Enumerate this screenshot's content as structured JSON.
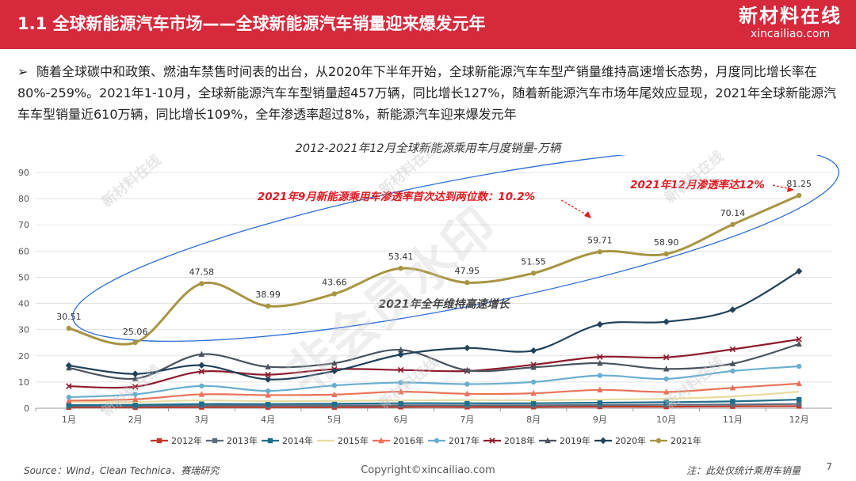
{
  "header": {
    "title": "1.1 全球新能源汽车市场——全球新能源汽车销量迎来爆发元年",
    "logo_main": "新材料在线",
    "logo_sub": "xincailiao.com"
  },
  "bullet": {
    "marker": "➢",
    "text": "随着全球碳中和政策、燃油车禁售时间表的出台，从2020年下半年开始，全球新能源汽车车型产销量维持高速增长态势，月度同比增长率在80%-259%。2021年1-10月，全球新能源汽车车型销量超457万辆，同比增长127%，随着新能源汽车市场年尾效应显现，2021年全球新能源汽车车型销量近610万辆，同比增长109%，全年渗透率超过8%，新能源汽车迎来爆发元年"
  },
  "watermarks": {
    "big": "非会员水印",
    "small": "新材料在线",
    "small_sub": "xincailiao.com"
  },
  "chart_data": {
    "type": "line",
    "title": "2012-2021年12月全球新能源乘用车月度销量-万辆",
    "categories": [
      "1月",
      "2月",
      "3月",
      "4月",
      "5月",
      "6月",
      "7月",
      "8月",
      "9月",
      "10月",
      "11月",
      "12月"
    ],
    "ylim": [
      0,
      90
    ],
    "yticks": [
      0,
      10,
      20,
      30,
      40,
      50,
      60,
      70,
      80,
      90
    ],
    "grid": true,
    "legend_position": "bottom",
    "series": [
      {
        "name": "2012年",
        "color": "#c0392b",
        "marker": "square",
        "values": [
          0.3,
          0.3,
          0.4,
          0.4,
          0.4,
          0.5,
          0.5,
          0.5,
          0.6,
          0.6,
          0.7,
          0.8
        ]
      },
      {
        "name": "2013年",
        "color": "#5d6d7e",
        "marker": "square",
        "values": [
          0.8,
          0.8,
          1.0,
          1.0,
          1.0,
          1.1,
          1.1,
          1.1,
          1.2,
          1.3,
          1.4,
          1.6
        ]
      },
      {
        "name": "2014年",
        "color": "#1f6f8b",
        "marker": "square",
        "values": [
          1.2,
          1.3,
          1.6,
          1.6,
          1.7,
          1.9,
          1.9,
          1.9,
          2.1,
          2.3,
          2.6,
          3.3
        ]
      },
      {
        "name": "2015年",
        "color": "#e8dca0",
        "marker": "none",
        "values": [
          2.5,
          2.4,
          3.0,
          2.7,
          2.8,
          3.0,
          3.1,
          3.0,
          3.3,
          3.6,
          4.5,
          6.3
        ]
      },
      {
        "name": "2016年",
        "color": "#e8735a",
        "marker": "triangle",
        "values": [
          2.9,
          3.4,
          5.3,
          5.0,
          5.2,
          6.3,
          5.5,
          5.7,
          7.0,
          6.2,
          7.8,
          9.4
        ]
      },
      {
        "name": "2017年",
        "color": "#6aaecf",
        "marker": "circle",
        "values": [
          4.2,
          5.3,
          8.5,
          6.6,
          8.7,
          9.8,
          9.2,
          10.0,
          12.5,
          11.2,
          14.2,
          16.0
        ]
      },
      {
        "name": "2018年",
        "color": "#8e1b2e",
        "marker": "cross",
        "values": [
          8.4,
          8.2,
          14.0,
          12.8,
          14.9,
          14.6,
          14.2,
          16.6,
          19.6,
          19.4,
          22.5,
          26.3
        ]
      },
      {
        "name": "2019年",
        "color": "#4a535e",
        "marker": "triangle",
        "values": [
          15.4,
          11.3,
          20.6,
          15.8,
          17.2,
          22.3,
          14.5,
          15.6,
          17.2,
          15.0,
          17.0,
          24.5
        ]
      },
      {
        "name": "2020年",
        "color": "#21425a",
        "marker": "diamond",
        "values": [
          16.3,
          13.1,
          16.4,
          11.0,
          14.2,
          20.5,
          23.0,
          22.0,
          32.0,
          33.0,
          37.6,
          52.3
        ]
      },
      {
        "name": "2021年",
        "color": "#a89544",
        "marker": "circle",
        "values": [
          30.51,
          25.06,
          47.58,
          38.99,
          43.66,
          53.41,
          47.95,
          51.55,
          59.71,
          58.9,
          70.14,
          81.25
        ]
      }
    ],
    "data_labels": [
      "30.51",
      "25.06",
      "47.58",
      "38.99",
      "43.66",
      "53.41",
      "47.95",
      "51.55",
      "59.71",
      "58.90",
      "70.14",
      "81.25"
    ],
    "annotations": {
      "sep": "2021年9月新能源乘用车渗透率首次达到两位数：10.2%",
      "dec": "2021年12月渗透率达12%",
      "growth": "2021年全年维持高速增长"
    }
  },
  "footer": {
    "source": "Source：Wind，Clean Technica、赛瑞研究",
    "copyright": "Copyright©xincailiao.com",
    "note": "注：此处仅统计乘用车销量",
    "page": "7"
  }
}
